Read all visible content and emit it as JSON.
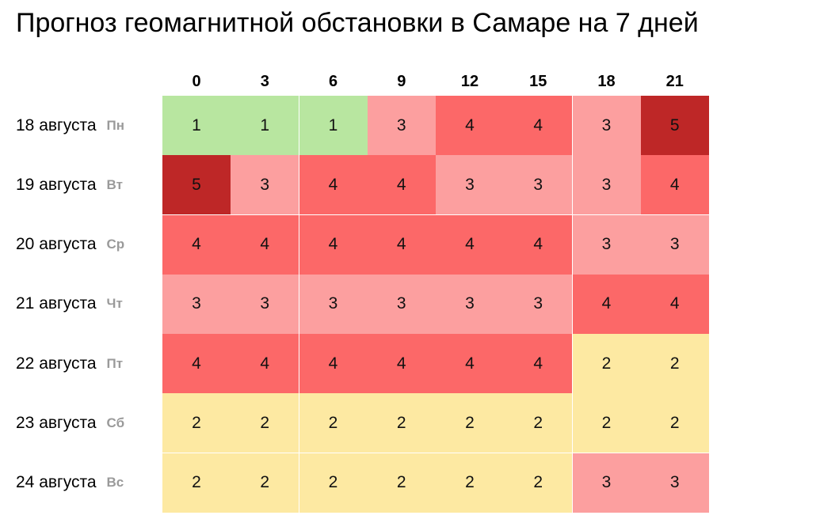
{
  "title": "Прогноз геомагнитной обстановки в Самаре на 7 дней",
  "colors": {
    "1": "#b8e6a0",
    "2": "#fde9a2",
    "3": "#fc9f9f",
    "4": "#fc6868",
    "5": "#be2727"
  },
  "chart_data": {
    "type": "heatmap",
    "title": "Прогноз геомагнитной обстановки в Самаре на 7 дней",
    "x": [
      "0",
      "3",
      "6",
      "9",
      "12",
      "15",
      "18",
      "21"
    ],
    "rows": [
      {
        "date": "18 августа",
        "dow": "Пн",
        "values": [
          1,
          1,
          1,
          3,
          4,
          4,
          3,
          5
        ]
      },
      {
        "date": "19 августа",
        "dow": "Вт",
        "values": [
          5,
          3,
          4,
          4,
          3,
          3,
          3,
          4
        ]
      },
      {
        "date": "20 августа",
        "dow": "Ср",
        "values": [
          4,
          4,
          4,
          4,
          4,
          4,
          3,
          3
        ]
      },
      {
        "date": "21 августа",
        "dow": "Чт",
        "values": [
          3,
          3,
          3,
          3,
          3,
          3,
          4,
          4
        ]
      },
      {
        "date": "22 августа",
        "dow": "Пт",
        "values": [
          4,
          4,
          4,
          4,
          4,
          4,
          2,
          2
        ]
      },
      {
        "date": "23 августа",
        "dow": "Сб",
        "values": [
          2,
          2,
          2,
          2,
          2,
          2,
          2,
          2
        ]
      },
      {
        "date": "24 августа",
        "dow": "Вс",
        "values": [
          2,
          2,
          2,
          2,
          2,
          2,
          3,
          3
        ]
      }
    ]
  }
}
